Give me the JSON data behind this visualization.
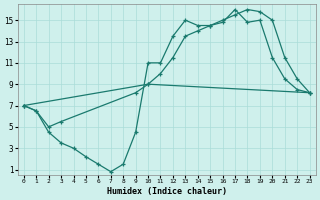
{
  "xlabel": "Humidex (Indice chaleur)",
  "bg_color": "#cff0ec",
  "grid_color": "#aaddd8",
  "line_color": "#1a7a6e",
  "xlim": [
    -0.5,
    23.5
  ],
  "ylim": [
    0.5,
    16.5
  ],
  "xticks": [
    0,
    1,
    2,
    3,
    4,
    5,
    6,
    7,
    8,
    9,
    10,
    11,
    12,
    13,
    14,
    15,
    16,
    17,
    18,
    19,
    20,
    21,
    22,
    23
  ],
  "yticks": [
    1,
    3,
    5,
    7,
    9,
    11,
    13,
    15
  ],
  "line_zigzag_x": [
    0,
    1,
    2,
    3,
    4,
    5,
    6,
    7,
    8,
    9,
    10,
    11,
    12,
    13,
    14,
    15,
    16,
    17,
    18,
    19,
    20,
    21,
    22,
    23
  ],
  "line_zigzag_y": [
    7,
    6.5,
    4.5,
    3.5,
    3.0,
    2.2,
    1.5,
    0.8,
    1.5,
    4.5,
    11,
    11,
    13.5,
    15,
    14.5,
    14.5,
    14.8,
    16,
    14.8,
    15,
    11.5,
    9.5,
    8.5,
    8.2
  ],
  "line_upper_x": [
    0,
    10,
    11,
    12,
    13,
    14,
    15,
    16,
    17,
    18,
    19,
    20,
    21,
    22,
    23
  ],
  "line_upper_y": [
    7,
    9.0,
    10.0,
    11.5,
    13.5,
    14.0,
    14.5,
    15.0,
    15.5,
    16.0,
    15.8,
    15.0,
    11.5,
    9.5,
    8.2
  ],
  "line_diag_x": [
    0,
    1,
    2,
    3,
    9,
    10,
    23
  ],
  "line_diag_y": [
    7,
    6.5,
    5.0,
    5.5,
    8.2,
    9.0,
    8.2
  ]
}
